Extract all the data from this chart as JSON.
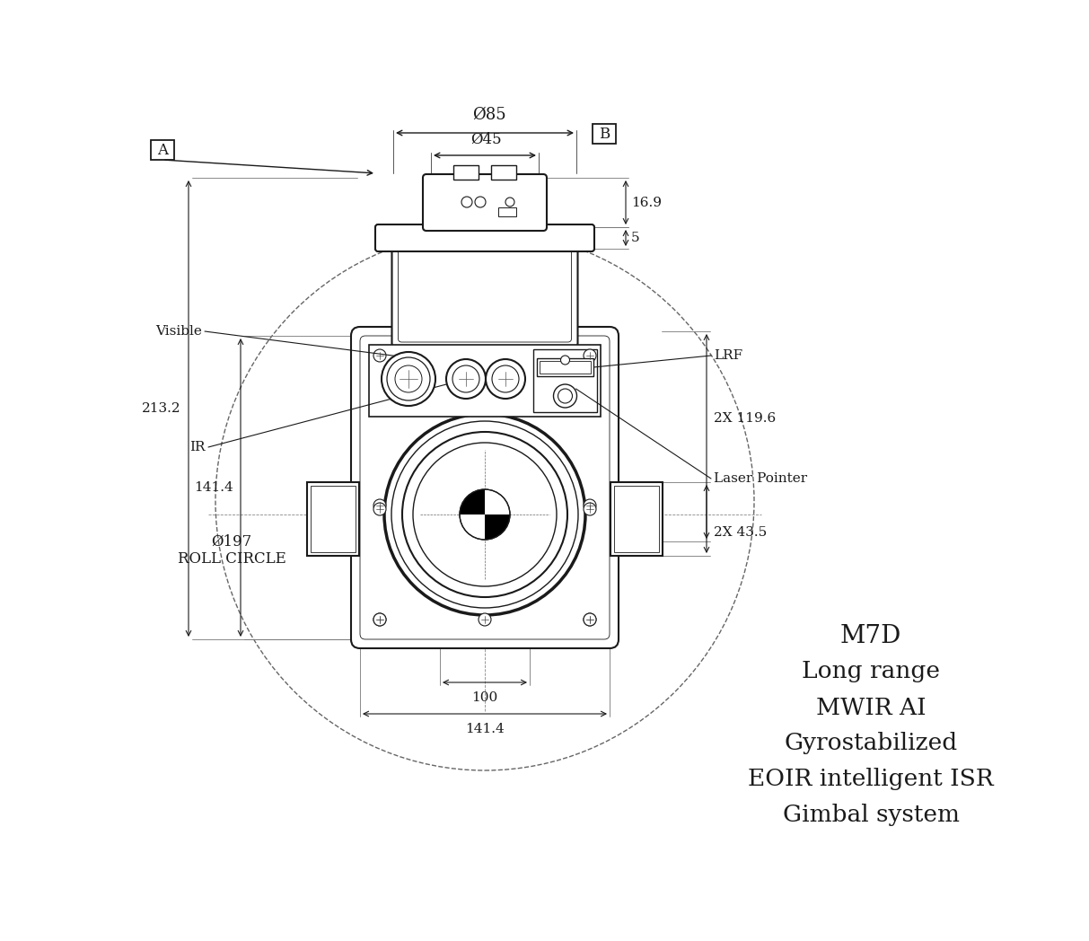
{
  "bg_color": "#ffffff",
  "line_color": "#1a1a1a",
  "text_color": "#1a1a1a",
  "product_lines": [
    "M7D",
    "Long range",
    "MWIR AI",
    "Gyrostabilized",
    "EOIR intelligent ISR",
    "Gimbal system"
  ],
  "dim_phi85": "Ø85",
  "dim_phi45": "Ø45",
  "dim_169": "16.9",
  "dim_5": "5",
  "dim_141_4": "141.4",
  "dim_213_2": "213.2",
  "dim_2x1196": "2X 119.6",
  "dim_lrf": "LRF",
  "dim_laser": "Laser Pointer",
  "dim_ir": "IR",
  "dim_visible": "Visible",
  "dim_2x435": "2X 43.5",
  "dim_100": "100",
  "dim_141_4b": "141.4",
  "dim_roll": "Ø197\nROLL CIRCLE",
  "label_a": "A",
  "label_b": "B"
}
